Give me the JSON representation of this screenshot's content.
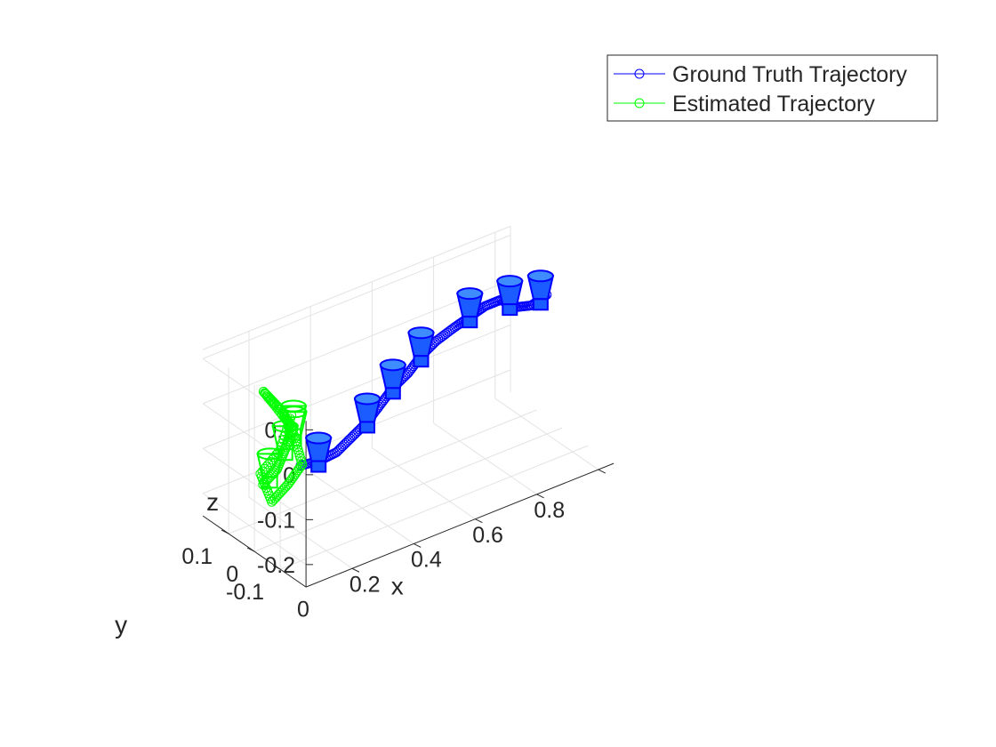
{
  "chart_data": {
    "type": "scatter",
    "projection": "3d",
    "xlabel": "x",
    "ylabel": "y",
    "zlabel": "z",
    "xlim": [
      -0.15,
      0.85
    ],
    "ylim": [
      -0.2,
      0.2
    ],
    "zlim": [
      -0.25,
      0.12
    ],
    "x_ticks": [
      {
        "value": 0,
        "label": "0"
      },
      {
        "value": 0.2,
        "label": "0.2"
      },
      {
        "value": 0.4,
        "label": "0.4"
      },
      {
        "value": 0.6,
        "label": "0.6"
      },
      {
        "value": 0.8,
        "label": "0.8"
      }
    ],
    "y_ticks": [
      {
        "value": 0.1,
        "label": "0.1"
      },
      {
        "value": 0,
        "label": "0"
      },
      {
        "value": -0.1,
        "label": "-0.1"
      }
    ],
    "z_ticks": [
      {
        "value": 0.1,
        "label": "0.1"
      },
      {
        "value": 0,
        "label": "0"
      },
      {
        "value": -0.1,
        "label": "-0.1"
      },
      {
        "value": -0.2,
        "label": "-0.2"
      }
    ],
    "grid": true,
    "legend_position": "top-right",
    "series": [
      {
        "name": "Ground Truth Trajectory",
        "color": "#0000ff",
        "marker": "circle",
        "x": [
          0.0,
          0.05,
          0.1,
          0.15,
          0.2,
          0.25,
          0.3,
          0.35,
          0.4,
          0.45,
          0.5,
          0.55,
          0.6,
          0.65,
          0.7,
          0.75,
          0.8
        ],
        "y": [
          0.0,
          -0.01,
          -0.02,
          -0.02,
          -0.02,
          -0.01,
          0.0,
          0.0,
          0.01,
          0.01,
          0.0,
          0.0,
          0.0,
          0.0,
          0.0,
          0.0,
          0.0
        ],
        "z": [
          -0.1,
          -0.1,
          -0.09,
          -0.07,
          -0.05,
          -0.03,
          -0.01,
          0.01,
          0.03,
          0.05,
          0.07,
          0.08,
          0.09,
          0.09,
          0.06,
          0.05,
          0.06
        ],
        "camera_frames_x": [
          0.05,
          0.2,
          0.3,
          0.4,
          0.55,
          0.68,
          0.78
        ]
      },
      {
        "name": "Estimated Trajectory",
        "color": "#00ff00",
        "marker": "circle",
        "x": [
          -0.08,
          -0.06,
          -0.05,
          -0.04,
          -0.06,
          -0.07,
          -0.05,
          -0.03,
          -0.02,
          -0.04,
          -0.06,
          -0.08,
          -0.05,
          -0.03
        ],
        "y": [
          0.05,
          0.02,
          0.0,
          -0.02,
          0.03,
          0.06,
          0.01,
          -0.01,
          -0.03,
          0.0,
          0.04,
          0.06,
          0.02,
          0.0
        ],
        "z": [
          -0.14,
          -0.1,
          -0.05,
          0.0,
          0.04,
          0.06,
          0.03,
          -0.02,
          -0.08,
          -0.13,
          -0.18,
          -0.12,
          -0.06,
          0.02
        ],
        "camera_frames_x": [
          -0.07,
          -0.05,
          -0.04,
          -0.03
        ]
      }
    ]
  }
}
